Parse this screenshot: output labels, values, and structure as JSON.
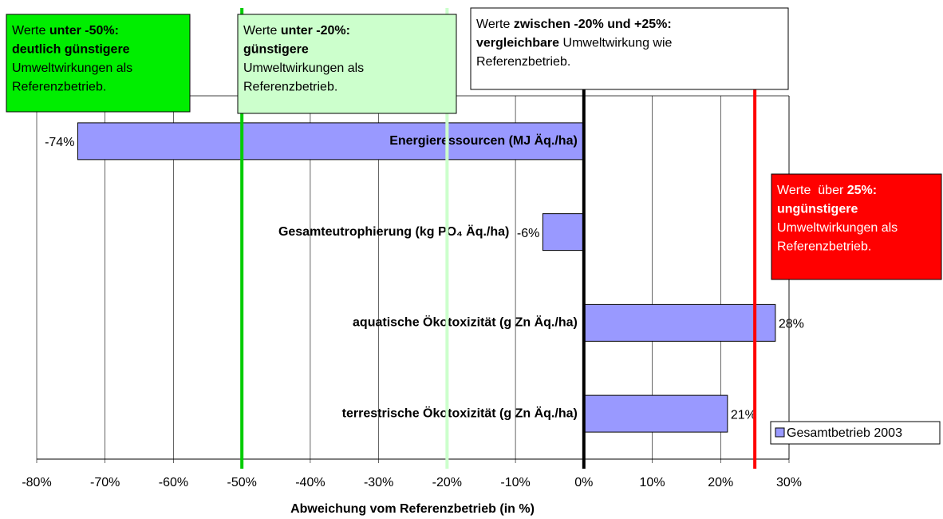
{
  "chart_data": {
    "type": "hbar",
    "categories": [
      "Energieressourcen (MJ Äq./ha)",
      "Gesamteutrophierung (kg PO₄ Äq./ha)",
      "aquatische Ökotoxizität (g Zn Äq./ha)",
      "terrestrische Ökotoxizität (g Zn Äq./ha)"
    ],
    "series": [
      {
        "name": "Gesamtbetrieb 2003",
        "color": "#9999ff",
        "values": [
          -74,
          -6,
          28,
          21
        ],
        "value_labels": [
          "-74%",
          "-6%",
          "28%",
          "21%"
        ]
      }
    ],
    "xlim": [
      -80,
      30
    ],
    "xticks": [
      {
        "value": -80,
        "label": "-80%"
      },
      {
        "value": -70,
        "label": "-70%"
      },
      {
        "value": -60,
        "label": "-60%"
      },
      {
        "value": -50,
        "label": "-50%"
      },
      {
        "value": -40,
        "label": "-40%"
      },
      {
        "value": -30,
        "label": "-30%"
      },
      {
        "value": -20,
        "label": "-20%"
      },
      {
        "value": -10,
        "label": "-10%"
      },
      {
        "value": 0,
        "label": "0%"
      },
      {
        "value": 10,
        "label": "10%"
      },
      {
        "value": 20,
        "label": "20%"
      },
      {
        "value": 30,
        "label": "30%"
      }
    ],
    "xlabel": "Abweichung vom Referenzbetrieb (in %)",
    "grid": true,
    "legend": "lower right",
    "reference_lines": [
      {
        "value": -50,
        "color": "#00cc00"
      },
      {
        "value": -20,
        "color": "#ccffcc"
      },
      {
        "value": 0,
        "color": "#000000"
      },
      {
        "value": 25,
        "color": "#ff0000"
      }
    ],
    "annotations": [
      {
        "background": "#00ee00",
        "text_color": "#000000",
        "lines": [
          [
            {
              "text": "Werte ",
              "bold": false
            },
            {
              "text": "unter -50%:",
              "bold": true
            }
          ],
          [
            {
              "text": "deutlich günstigere",
              "bold": true
            }
          ],
          [
            {
              "text": "Umweltwirkungen als",
              "bold": false
            }
          ],
          [
            {
              "text": "Referenzbetrieb.",
              "bold": false
            }
          ]
        ]
      },
      {
        "background": "#ccffcc",
        "text_color": "#000000",
        "lines": [
          [
            {
              "text": "Werte ",
              "bold": false
            },
            {
              "text": "unter -20%:",
              "bold": true
            }
          ],
          [
            {
              "text": "günstigere",
              "bold": true
            }
          ],
          [
            {
              "text": "Umweltwirkungen als",
              "bold": false
            }
          ],
          [
            {
              "text": "Referenzbetrieb.",
              "bold": false
            }
          ]
        ]
      },
      {
        "background": "#ffffff",
        "text_color": "#000000",
        "lines": [
          [
            {
              "text": "Werte ",
              "bold": false
            },
            {
              "text": "zwischen -20% und +25%:",
              "bold": true
            }
          ],
          [
            {
              "text": "vergleichbare",
              "bold": true
            },
            {
              "text": " Umweltwirkung wie",
              "bold": false
            }
          ],
          [
            {
              "text": "Referenzbetrieb.",
              "bold": false
            }
          ]
        ]
      },
      {
        "background": "#ff0000",
        "text_color": "#ffffff",
        "lines": [
          [
            {
              "text": "Werte  über ",
              "bold": false
            },
            {
              "text": "25%:",
              "bold": true
            }
          ],
          [
            {
              "text": "ungünstigere",
              "bold": true
            }
          ],
          [
            {
              "text": "Umweltwirkungen als",
              "bold": false
            }
          ],
          [
            {
              "text": "Referenzbetrieb.",
              "bold": false
            }
          ]
        ]
      }
    ]
  }
}
